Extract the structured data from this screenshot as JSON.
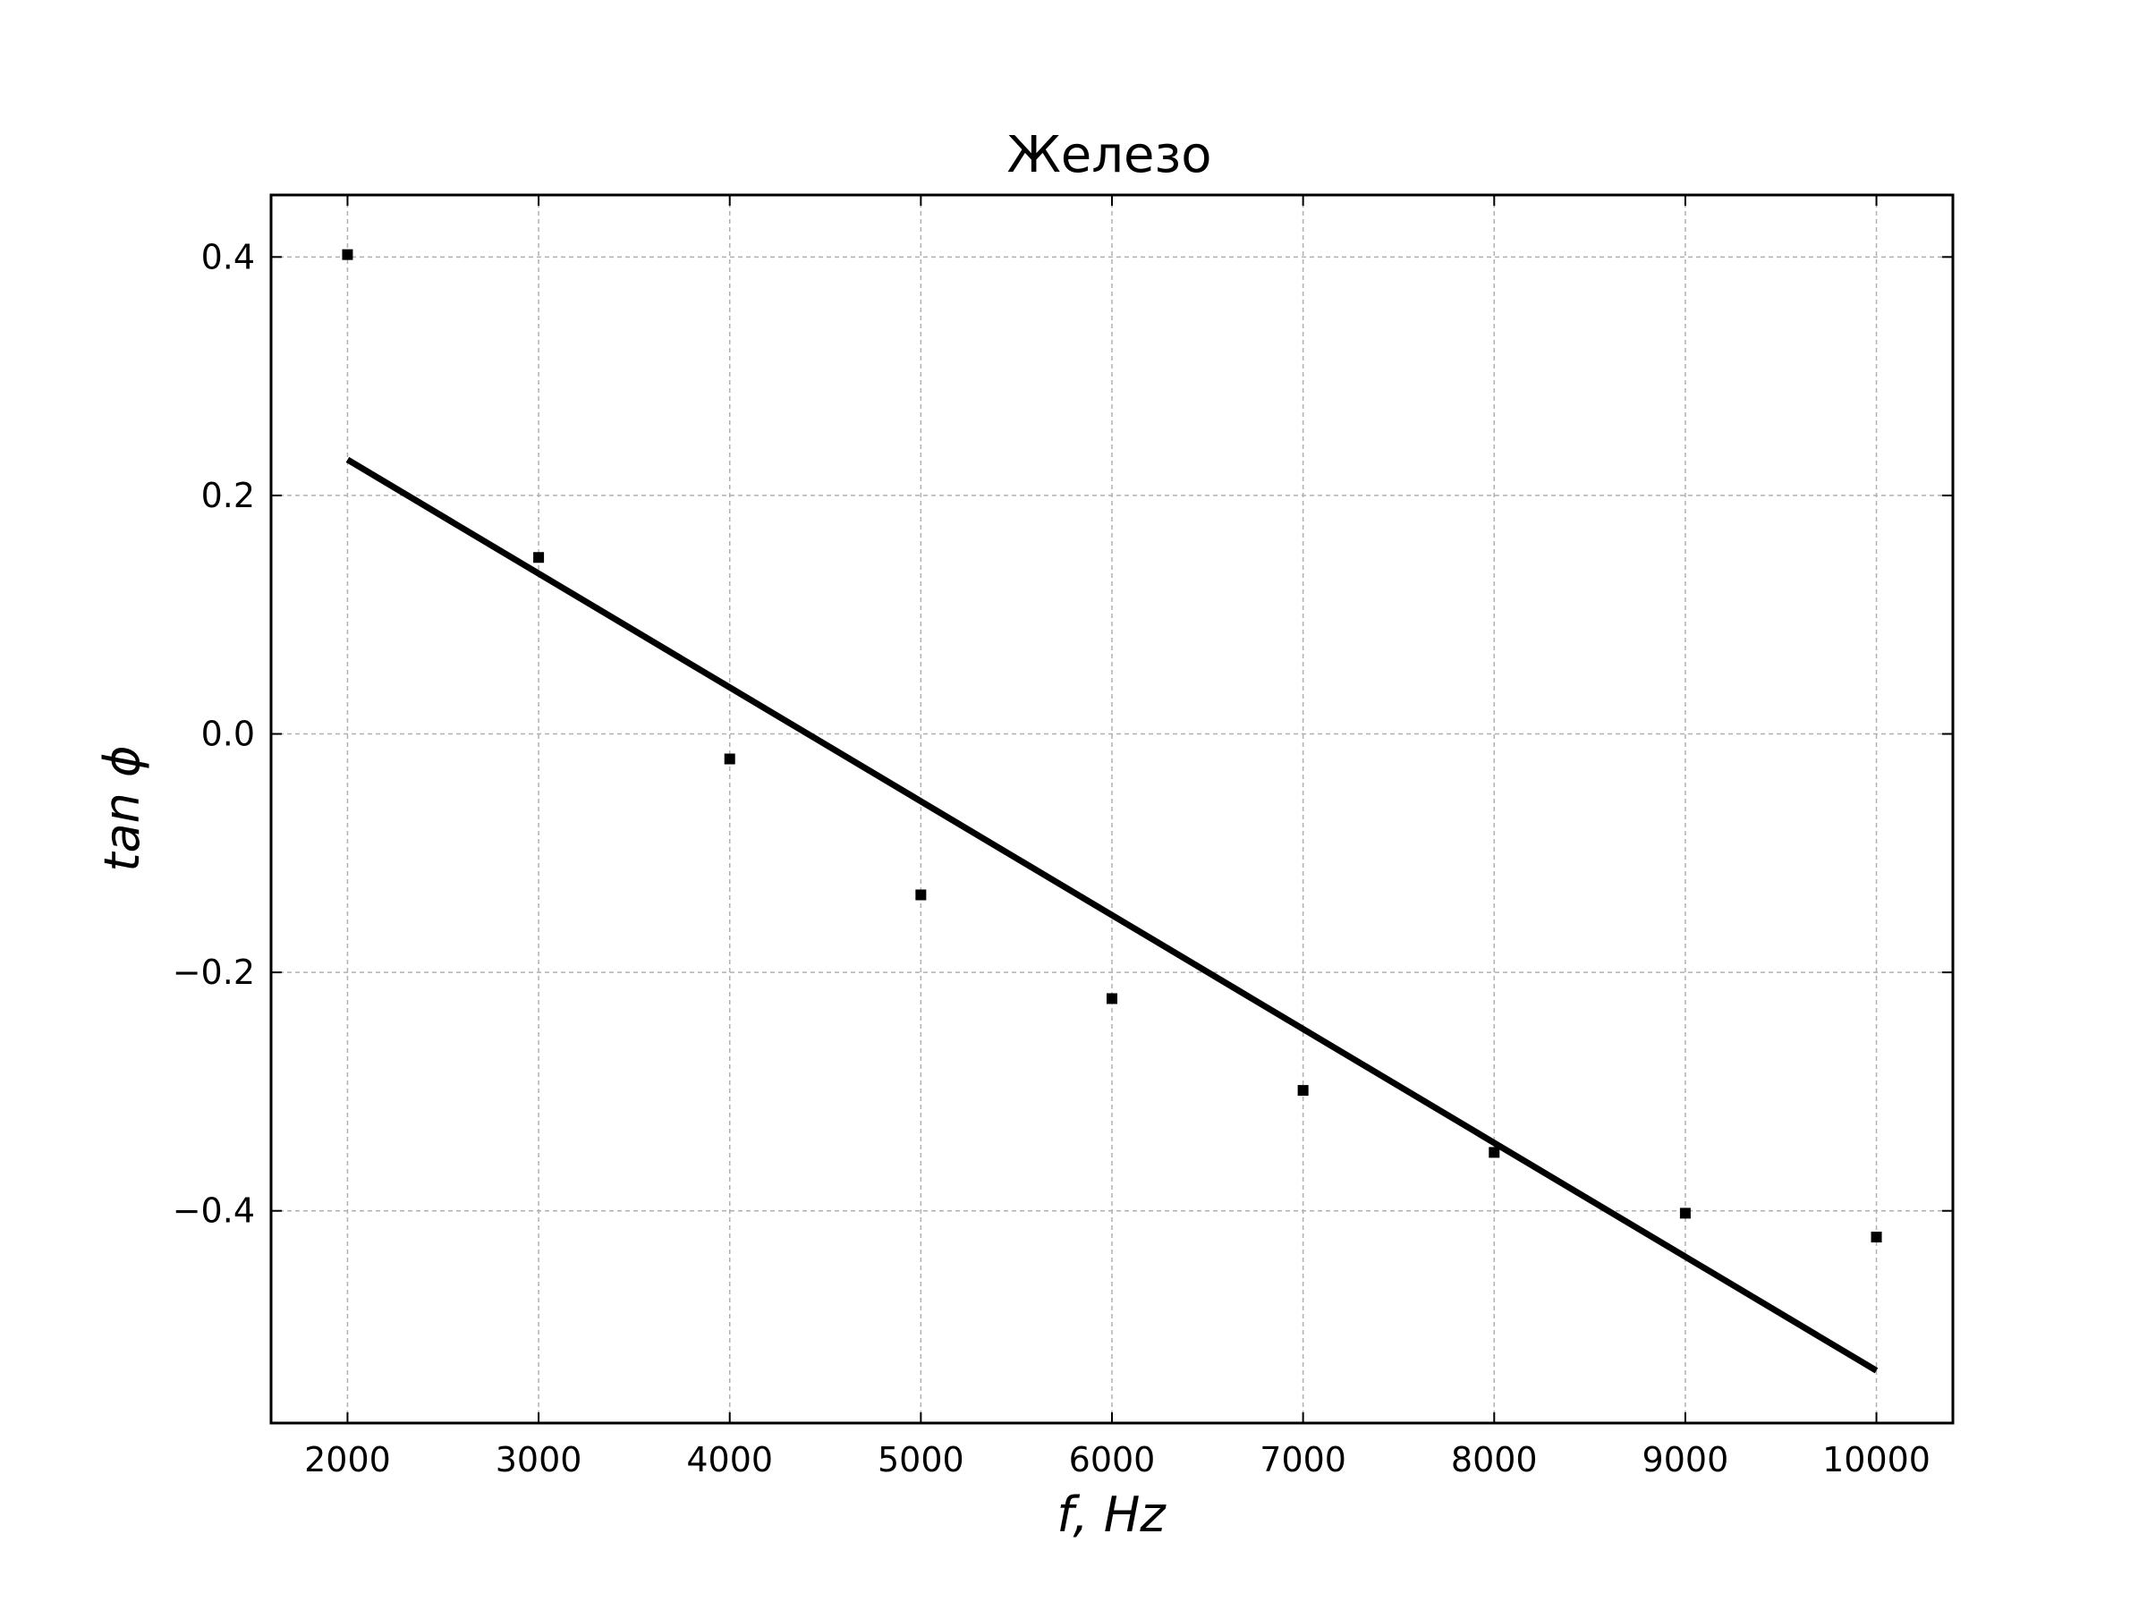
{
  "chart_data": {
    "type": "scatter",
    "title": "Железо",
    "xlabel": "f, Hz",
    "ylabel": "tan ϕ",
    "xlim": [
      1600,
      10400
    ],
    "ylim": [
      -0.578,
      0.452
    ],
    "grid": true,
    "x_ticks": [
      2000,
      3000,
      4000,
      5000,
      6000,
      7000,
      8000,
      9000,
      10000
    ],
    "x_tick_labels": [
      "2000",
      "3000",
      "4000",
      "5000",
      "6000",
      "7000",
      "8000",
      "9000",
      "10000"
    ],
    "y_ticks": [
      0.4,
      0.2,
      0.0,
      -0.2,
      -0.4
    ],
    "y_tick_labels": [
      "0.4",
      "0.2",
      "0.0",
      "−0.2",
      "−0.4"
    ],
    "series": [
      {
        "type": "scatter",
        "x": [
          2000,
          3000,
          4000,
          5000,
          6000,
          7000,
          8000,
          9000,
          10000
        ],
        "y": [
          0.402,
          0.148,
          -0.021,
          -0.135,
          -0.222,
          -0.299,
          -0.351,
          -0.402,
          -0.422
        ],
        "color": "#000000"
      },
      {
        "type": "line",
        "x": [
          2000,
          10000
        ],
        "y": [
          0.23,
          -0.534
        ],
        "color": "#000000"
      }
    ]
  }
}
